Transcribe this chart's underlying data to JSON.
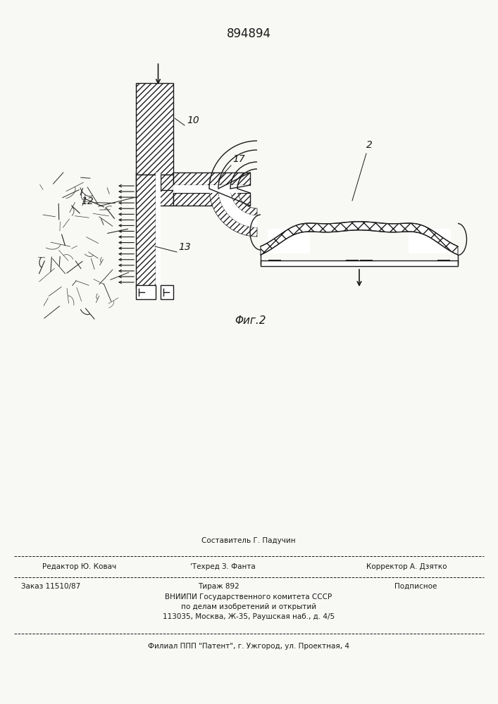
{
  "patent_number": "894894",
  "fig_label": "Φиг.2",
  "bg_color": "#f8f8f5",
  "line_color": "#1a1a1a",
  "editor_line": "Редактор Ю. Ковач",
  "compiler_line": "Составитель Г. Падучин",
  "techred_line": "Техред З. Фанта",
  "corrector_line": "Корректор А. Дзятко",
  "order_line": "Заказ 11510/87",
  "tirazh_line": "Тираж 892",
  "podpisnoe_line": "Подписное",
  "vniipи_line1": "ВНИИПИ Государственного комитета СССР",
  "vniipи_line2": "по делам изобретений и открытий",
  "address_line": "113035, Москва, Ж-35, Раушская наб., д. 4/5",
  "filial_line": "Филиал ППП \"Патент\", г. Ужгород, ул. Проектная, 4"
}
